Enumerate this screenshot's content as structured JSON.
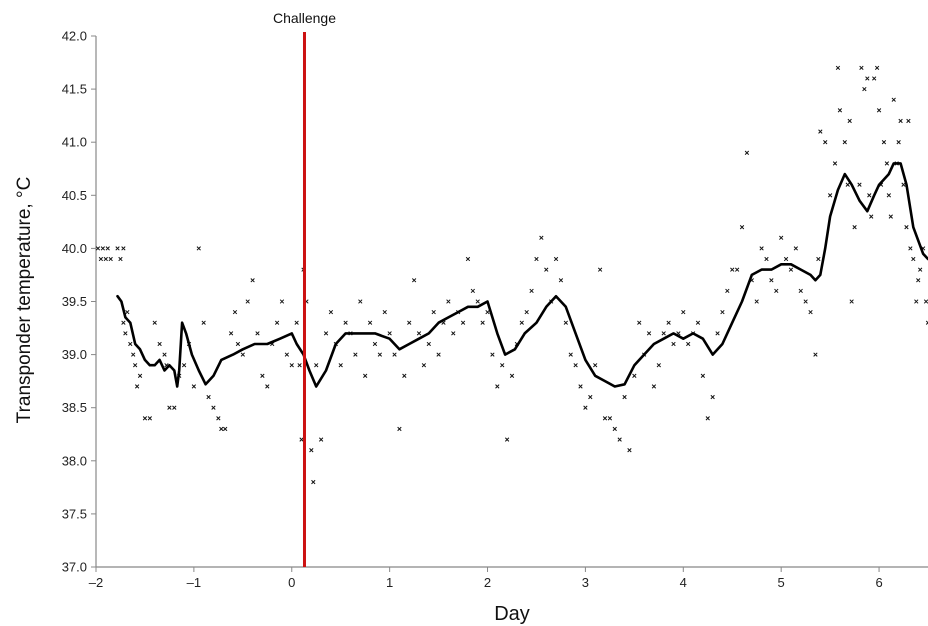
{
  "chart_data": {
    "type": "scatter",
    "title": "",
    "xlabel": "Day",
    "ylabel": "Transponder temperature, °C",
    "xlim": [
      -2,
      6.5
    ],
    "ylim": [
      37.0,
      42.0
    ],
    "x_ticks": [
      -2,
      -1,
      0,
      1,
      2,
      3,
      4,
      5,
      6
    ],
    "x_tick_labels": [
      "–2",
      "–1",
      "0",
      "1",
      "2",
      "3",
      "4",
      "5",
      "6"
    ],
    "y_ticks": [
      37.0,
      37.5,
      38.0,
      38.5,
      39.0,
      39.5,
      40.0,
      40.5,
      41.0,
      41.5,
      42.0
    ],
    "y_tick_labels": [
      "37.0",
      "37.5",
      "38.0",
      "38.5",
      "39.0",
      "39.5",
      "40.0",
      "40.5",
      "41.0",
      "41.5",
      "42.0"
    ],
    "grid": false,
    "legend": "none",
    "annotations": [
      {
        "label": "Challenge",
        "x": 0.13,
        "color": "#cc1111"
      }
    ],
    "series": [
      {
        "kind": "scatter",
        "marker": "x",
        "color": "#111111",
        "points": [
          [
            -1.98,
            40.0
          ],
          [
            -1.95,
            39.9
          ],
          [
            -1.93,
            40.0
          ],
          [
            -1.9,
            39.9
          ],
          [
            -1.88,
            40.0
          ],
          [
            -1.85,
            39.9
          ],
          [
            -1.78,
            40.0
          ],
          [
            -1.75,
            39.9
          ],
          [
            -1.72,
            40.0
          ],
          [
            -1.72,
            39.3
          ],
          [
            -1.7,
            39.2
          ],
          [
            -1.68,
            39.4
          ],
          [
            -1.65,
            39.1
          ],
          [
            -1.62,
            39.0
          ],
          [
            -1.6,
            38.9
          ],
          [
            -1.58,
            38.7
          ],
          [
            -1.55,
            38.8
          ],
          [
            -1.5,
            38.4
          ],
          [
            -1.45,
            38.4
          ],
          [
            -1.4,
            39.3
          ],
          [
            -1.35,
            39.1
          ],
          [
            -1.3,
            39.0
          ],
          [
            -1.28,
            38.9
          ],
          [
            -1.25,
            38.5
          ],
          [
            -1.2,
            38.5
          ],
          [
            -1.15,
            38.8
          ],
          [
            -1.1,
            38.9
          ],
          [
            -1.05,
            39.1
          ],
          [
            -1.0,
            38.7
          ],
          [
            -0.95,
            40.0
          ],
          [
            -0.9,
            39.3
          ],
          [
            -0.85,
            38.6
          ],
          [
            -0.8,
            38.5
          ],
          [
            -0.75,
            38.4
          ],
          [
            -0.72,
            38.3
          ],
          [
            -0.68,
            38.3
          ],
          [
            -0.62,
            39.2
          ],
          [
            -0.58,
            39.4
          ],
          [
            -0.55,
            39.1
          ],
          [
            -0.5,
            39.0
          ],
          [
            -0.45,
            39.5
          ],
          [
            -0.4,
            39.7
          ],
          [
            -0.35,
            39.2
          ],
          [
            -0.3,
            38.8
          ],
          [
            -0.25,
            38.7
          ],
          [
            -0.2,
            39.1
          ],
          [
            -0.15,
            39.3
          ],
          [
            -0.1,
            39.5
          ],
          [
            -0.05,
            39.0
          ],
          [
            0.0,
            38.9
          ],
          [
            0.05,
            39.3
          ],
          [
            0.08,
            38.9
          ],
          [
            0.1,
            38.2
          ],
          [
            0.12,
            39.8
          ],
          [
            0.15,
            39.5
          ],
          [
            0.2,
            38.1
          ],
          [
            0.25,
            38.9
          ],
          [
            0.22,
            37.8
          ],
          [
            0.3,
            38.2
          ],
          [
            0.35,
            39.2
          ],
          [
            0.4,
            39.4
          ],
          [
            0.45,
            39.1
          ],
          [
            0.5,
            38.9
          ],
          [
            0.55,
            39.3
          ],
          [
            0.6,
            39.2
          ],
          [
            0.65,
            39.0
          ],
          [
            0.7,
            39.5
          ],
          [
            0.75,
            38.8
          ],
          [
            0.8,
            39.3
          ],
          [
            0.85,
            39.1
          ],
          [
            0.9,
            39.0
          ],
          [
            0.95,
            39.4
          ],
          [
            1.0,
            39.2
          ],
          [
            1.05,
            39.0
          ],
          [
            1.1,
            38.3
          ],
          [
            1.15,
            38.8
          ],
          [
            1.2,
            39.3
          ],
          [
            1.25,
            39.7
          ],
          [
            1.3,
            39.2
          ],
          [
            1.35,
            38.9
          ],
          [
            1.4,
            39.1
          ],
          [
            1.45,
            39.4
          ],
          [
            1.5,
            39.0
          ],
          [
            1.55,
            39.3
          ],
          [
            1.6,
            39.5
          ],
          [
            1.65,
            39.2
          ],
          [
            1.7,
            39.4
          ],
          [
            1.75,
            39.3
          ],
          [
            1.8,
            39.9
          ],
          [
            1.85,
            39.6
          ],
          [
            1.9,
            39.5
          ],
          [
            1.95,
            39.3
          ],
          [
            2.0,
            39.4
          ],
          [
            2.05,
            39.0
          ],
          [
            2.1,
            38.7
          ],
          [
            2.15,
            38.9
          ],
          [
            2.2,
            38.2
          ],
          [
            2.25,
            38.8
          ],
          [
            2.3,
            39.1
          ],
          [
            2.35,
            39.3
          ],
          [
            2.4,
            39.4
          ],
          [
            2.45,
            39.6
          ],
          [
            2.5,
            39.9
          ],
          [
            2.55,
            40.1
          ],
          [
            2.6,
            39.8
          ],
          [
            2.65,
            39.5
          ],
          [
            2.7,
            39.9
          ],
          [
            2.75,
            39.7
          ],
          [
            2.8,
            39.3
          ],
          [
            2.85,
            39.0
          ],
          [
            2.9,
            38.9
          ],
          [
            2.95,
            38.7
          ],
          [
            3.0,
            38.5
          ],
          [
            3.05,
            38.6
          ],
          [
            3.1,
            38.9
          ],
          [
            3.15,
            39.8
          ],
          [
            3.2,
            38.4
          ],
          [
            3.25,
            38.4
          ],
          [
            3.3,
            38.3
          ],
          [
            3.35,
            38.2
          ],
          [
            3.4,
            38.6
          ],
          [
            3.45,
            38.1
          ],
          [
            3.5,
            38.8
          ],
          [
            3.55,
            39.3
          ],
          [
            3.6,
            39.0
          ],
          [
            3.65,
            39.2
          ],
          [
            3.7,
            38.7
          ],
          [
            3.75,
            38.9
          ],
          [
            3.8,
            39.2
          ],
          [
            3.85,
            39.3
          ],
          [
            3.9,
            39.1
          ],
          [
            3.95,
            39.2
          ],
          [
            4.0,
            39.4
          ],
          [
            4.05,
            39.1
          ],
          [
            4.1,
            39.2
          ],
          [
            4.15,
            39.3
          ],
          [
            4.2,
            38.8
          ],
          [
            4.25,
            38.4
          ],
          [
            4.3,
            38.6
          ],
          [
            4.35,
            39.2
          ],
          [
            4.4,
            39.4
          ],
          [
            4.45,
            39.6
          ],
          [
            4.5,
            39.8
          ],
          [
            4.55,
            39.8
          ],
          [
            4.6,
            40.2
          ],
          [
            4.65,
            40.9
          ],
          [
            4.7,
            39.7
          ],
          [
            4.75,
            39.5
          ],
          [
            4.8,
            40.0
          ],
          [
            4.85,
            39.9
          ],
          [
            4.9,
            39.7
          ],
          [
            4.95,
            39.6
          ],
          [
            5.0,
            40.1
          ],
          [
            5.05,
            39.9
          ],
          [
            5.1,
            39.8
          ],
          [
            5.15,
            40.0
          ],
          [
            5.2,
            39.6
          ],
          [
            5.25,
            39.5
          ],
          [
            5.3,
            39.4
          ],
          [
            5.35,
            39.0
          ],
          [
            5.38,
            39.9
          ],
          [
            5.4,
            41.1
          ],
          [
            5.45,
            41.0
          ],
          [
            5.5,
            40.5
          ],
          [
            5.55,
            40.8
          ],
          [
            5.58,
            41.7
          ],
          [
            5.6,
            41.3
          ],
          [
            5.65,
            41.0
          ],
          [
            5.68,
            40.6
          ],
          [
            5.7,
            41.2
          ],
          [
            5.72,
            39.5
          ],
          [
            5.75,
            40.2
          ],
          [
            5.8,
            40.6
          ],
          [
            5.82,
            41.7
          ],
          [
            5.85,
            41.5
          ],
          [
            5.88,
            41.6
          ],
          [
            5.9,
            40.5
          ],
          [
            5.92,
            40.3
          ],
          [
            5.95,
            41.6
          ],
          [
            5.98,
            41.7
          ],
          [
            6.0,
            41.3
          ],
          [
            6.02,
            40.6
          ],
          [
            6.05,
            41.0
          ],
          [
            6.08,
            40.8
          ],
          [
            6.1,
            40.5
          ],
          [
            6.12,
            40.3
          ],
          [
            6.15,
            41.4
          ],
          [
            6.18,
            40.8
          ],
          [
            6.2,
            41.0
          ],
          [
            6.22,
            41.2
          ],
          [
            6.25,
            40.6
          ],
          [
            6.28,
            40.2
          ],
          [
            6.3,
            41.2
          ],
          [
            6.32,
            40.0
          ],
          [
            6.35,
            39.9
          ],
          [
            6.38,
            39.5
          ],
          [
            6.4,
            39.7
          ],
          [
            6.42,
            39.8
          ],
          [
            6.45,
            40.0
          ],
          [
            6.48,
            39.5
          ],
          [
            6.5,
            39.3
          ]
        ]
      },
      {
        "kind": "line",
        "color": "#000000",
        "points": [
          [
            -1.78,
            39.55
          ],
          [
            -1.74,
            39.5
          ],
          [
            -1.7,
            39.35
          ],
          [
            -1.65,
            39.3
          ],
          [
            -1.6,
            39.1
          ],
          [
            -1.55,
            39.05
          ],
          [
            -1.5,
            38.95
          ],
          [
            -1.45,
            38.9
          ],
          [
            -1.4,
            38.9
          ],
          [
            -1.35,
            38.95
          ],
          [
            -1.3,
            38.85
          ],
          [
            -1.25,
            38.9
          ],
          [
            -1.2,
            38.85
          ],
          [
            -1.17,
            38.7
          ],
          [
            -1.15,
            38.85
          ],
          [
            -1.12,
            39.3
          ],
          [
            -1.08,
            39.2
          ],
          [
            -1.02,
            39.0
          ],
          [
            -0.95,
            38.85
          ],
          [
            -0.88,
            38.72
          ],
          [
            -0.8,
            38.8
          ],
          [
            -0.72,
            38.95
          ],
          [
            -0.6,
            39.0
          ],
          [
            -0.5,
            39.05
          ],
          [
            -0.38,
            39.1
          ],
          [
            -0.25,
            39.1
          ],
          [
            -0.12,
            39.15
          ],
          [
            0.0,
            39.2
          ],
          [
            0.05,
            39.1
          ],
          [
            0.12,
            39.0
          ],
          [
            0.18,
            38.85
          ],
          [
            0.25,
            38.7
          ],
          [
            0.35,
            38.85
          ],
          [
            0.45,
            39.1
          ],
          [
            0.55,
            39.2
          ],
          [
            0.7,
            39.2
          ],
          [
            0.85,
            39.2
          ],
          [
            1.0,
            39.15
          ],
          [
            1.1,
            39.05
          ],
          [
            1.2,
            39.1
          ],
          [
            1.3,
            39.15
          ],
          [
            1.4,
            39.2
          ],
          [
            1.5,
            39.3
          ],
          [
            1.6,
            39.35
          ],
          [
            1.7,
            39.4
          ],
          [
            1.8,
            39.45
          ],
          [
            1.9,
            39.45
          ],
          [
            2.0,
            39.5
          ],
          [
            2.05,
            39.35
          ],
          [
            2.1,
            39.2
          ],
          [
            2.18,
            39.0
          ],
          [
            2.28,
            39.05
          ],
          [
            2.38,
            39.2
          ],
          [
            2.5,
            39.3
          ],
          [
            2.6,
            39.45
          ],
          [
            2.7,
            39.55
          ],
          [
            2.8,
            39.45
          ],
          [
            2.9,
            39.2
          ],
          [
            3.0,
            38.95
          ],
          [
            3.1,
            38.8
          ],
          [
            3.2,
            38.75
          ],
          [
            3.3,
            38.7
          ],
          [
            3.4,
            38.72
          ],
          [
            3.5,
            38.9
          ],
          [
            3.6,
            39.0
          ],
          [
            3.7,
            39.1
          ],
          [
            3.8,
            39.15
          ],
          [
            3.9,
            39.2
          ],
          [
            4.0,
            39.15
          ],
          [
            4.1,
            39.2
          ],
          [
            4.2,
            39.15
          ],
          [
            4.3,
            39.0
          ],
          [
            4.4,
            39.1
          ],
          [
            4.5,
            39.3
          ],
          [
            4.6,
            39.5
          ],
          [
            4.7,
            39.75
          ],
          [
            4.8,
            39.8
          ],
          [
            4.9,
            39.8
          ],
          [
            5.0,
            39.85
          ],
          [
            5.1,
            39.85
          ],
          [
            5.2,
            39.8
          ],
          [
            5.3,
            39.75
          ],
          [
            5.35,
            39.7
          ],
          [
            5.4,
            39.75
          ],
          [
            5.45,
            40.0
          ],
          [
            5.5,
            40.3
          ],
          [
            5.58,
            40.55
          ],
          [
            5.65,
            40.7
          ],
          [
            5.72,
            40.6
          ],
          [
            5.8,
            40.45
          ],
          [
            5.88,
            40.35
          ],
          [
            5.95,
            40.5
          ],
          [
            6.0,
            40.6
          ],
          [
            6.05,
            40.65
          ],
          [
            6.1,
            40.7
          ],
          [
            6.15,
            40.8
          ],
          [
            6.22,
            40.8
          ],
          [
            6.28,
            40.6
          ],
          [
            6.35,
            40.2
          ],
          [
            6.45,
            39.95
          ],
          [
            6.5,
            39.9
          ]
        ]
      }
    ]
  }
}
